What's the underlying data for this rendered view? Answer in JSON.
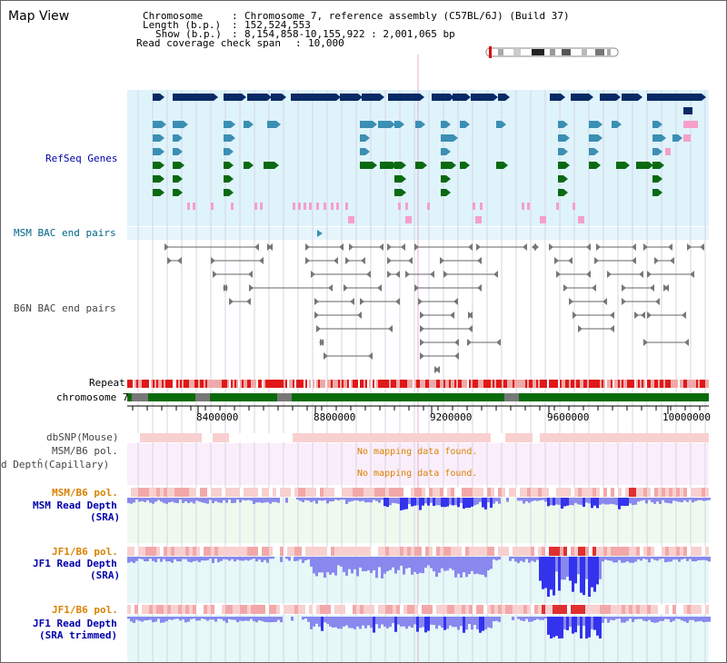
{
  "header": {
    "title": "Map View",
    "chromosome_key": "Chromosome",
    "chromosome_value": "Chromosome 7, reference assembly (C57BL/6J) (Build 37)",
    "length_key": "Length (b.p.)",
    "length_value": "152,524,553",
    "show_key": "Show (b.p.)",
    "show_value": "8,154,858-10,155,922 : 2,001,065 bp",
    "coverage_key": "Read coverage check span",
    "coverage_value": "10,000"
  },
  "tracks": {
    "refseq": "RefSeq Genes",
    "msm_bac": "MSM BAC end pairs",
    "b6n_bac": "B6N BAC end pairs",
    "repeat": "Repeat",
    "chromosome": "chromosome 7",
    "dbsnp": "dbSNP(Mouse)",
    "msm_b6_pol_1": "MSM/B6 pol.",
    "depth_capillary": "d Deptĥ(Capillary)",
    "msm_b6_pol_2": "MSM/B6 pol.",
    "msm_depth_1": "MSM Read Depth",
    "msm_depth_2": "(SRA)",
    "jf1_pol_1": "JF1/B6 pol.",
    "jf1_depth_1": "JF1 Read Depth",
    "jf1_depth_2": "(SRA)",
    "jf1_pol_2": "JF1/B6 pol.",
    "jf1_trim_1": "JF1 Read Depth",
    "jf1_trim_2": "(SRA trimmed)"
  },
  "messages": {
    "no_data_1": "No mapping data found.",
    "no_data_2": "No mapping data found."
  },
  "axis": {
    "ticks": [
      "8400000",
      "8800000",
      "9200000",
      "9600000",
      "10000000"
    ]
  },
  "colors": {
    "refseq_bg": "#dff3fb",
    "gene_dark": "#0a2a66",
    "gene_mid": "#3b8fb3",
    "gene_green": "#0a6a12",
    "gene_pink": "#f5a0c8",
    "label_blue": "#0000aa",
    "label_teal": "#006688",
    "label_orange": "#d98200",
    "repeat_red": "#e01818",
    "chrom_green": "#0a6a0a",
    "depth_blue": "#3333ee",
    "pol_pink": "#f5b8b8"
  }
}
